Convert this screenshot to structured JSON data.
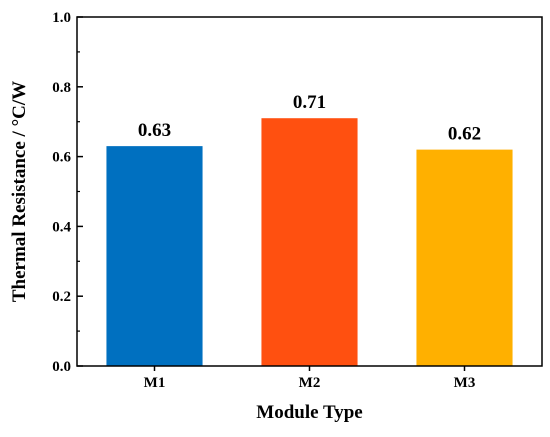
{
  "chart_data": {
    "type": "bar",
    "title": "",
    "xlabel": "Module Type",
    "ylabel": "Thermal Resistance / °C/W",
    "categories": [
      "M1",
      "M2",
      "M3"
    ],
    "values": [
      0.63,
      0.71,
      0.62
    ],
    "data_labels": [
      "0.63",
      "0.71",
      "0.62"
    ],
    "colors": [
      "#0070C0",
      "#FF5010",
      "#FFB000"
    ],
    "ylim": [
      0,
      1.0
    ],
    "yticks": [
      0.0,
      0.2,
      0.4,
      0.6,
      0.8,
      1.0
    ],
    "ytick_labels": [
      "0.0",
      "0.2",
      "0.4",
      "0.6",
      "0.8",
      "1.0"
    ],
    "grid": false,
    "legend": "none"
  }
}
